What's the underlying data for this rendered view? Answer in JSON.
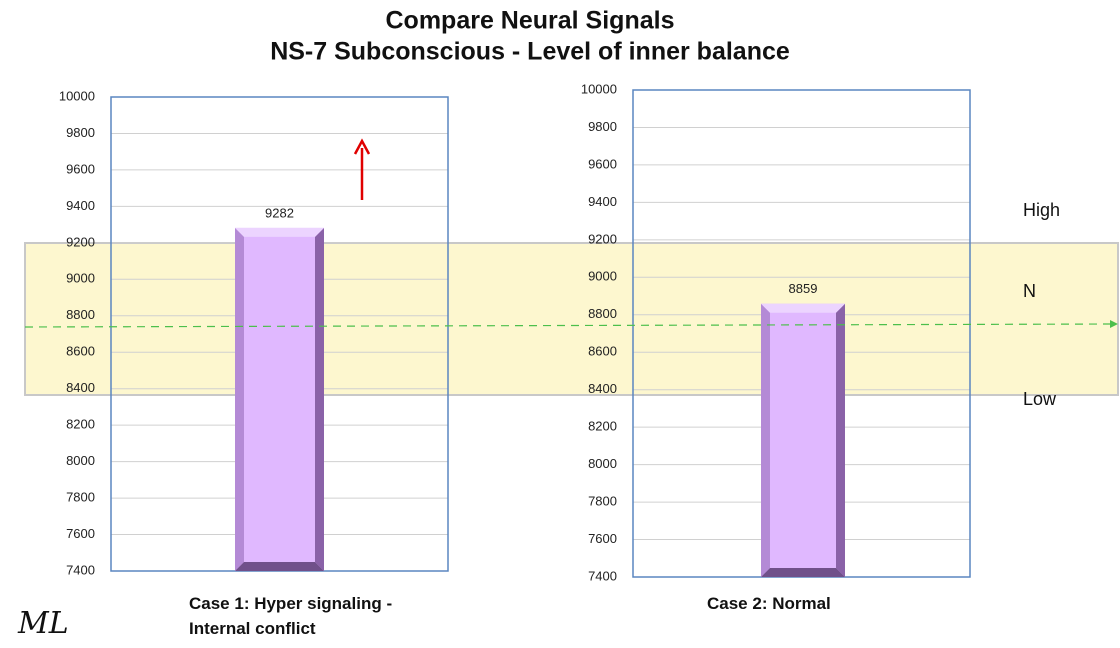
{
  "title": "Compare Neural Signals",
  "subtitle": "NS-7  Subconscious - Level of inner balance",
  "band_labels": [
    "High",
    "N",
    "Low"
  ],
  "signature": "ML",
  "chart_data": [
    {
      "type": "bar",
      "categories": [
        null
      ],
      "values": [
        9282
      ],
      "color": "#e0b8ff",
      "x_label": "Case 1: Hyper signaling - Internal conflict",
      "ylim": [
        7400,
        10000
      ],
      "yticks": [
        7400,
        7600,
        7800,
        8000,
        8200,
        8400,
        8600,
        8800,
        9000,
        9200,
        9400,
        9600,
        9800,
        10000
      ],
      "grid": true
    },
    {
      "type": "bar",
      "categories": [
        null
      ],
      "values": [
        8859
      ],
      "color": "#e0b8ff",
      "x_label": "Case 2:  Normal",
      "ylim": [
        7400,
        10000
      ],
      "yticks": [
        7400,
        7600,
        7800,
        8000,
        8200,
        8400,
        8600,
        8800,
        9000,
        9200,
        9400,
        9600,
        9800,
        10000
      ],
      "grid": true
    }
  ]
}
